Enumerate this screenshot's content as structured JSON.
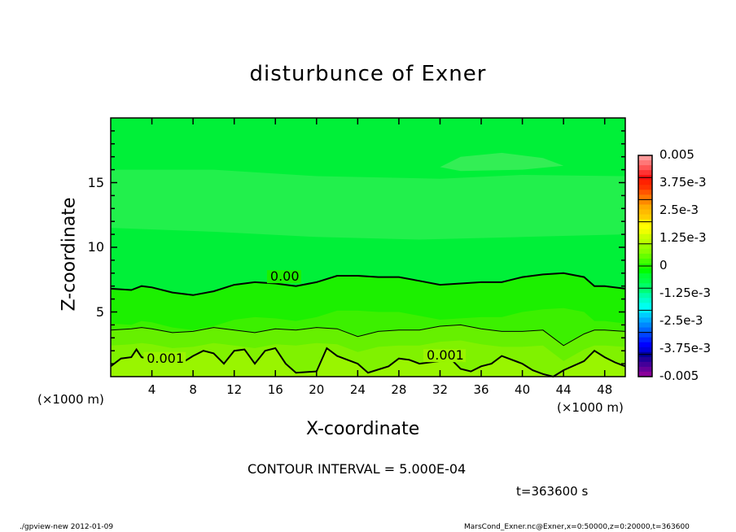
{
  "chart_data": {
    "type": "heatmap",
    "title": "disturbunce of Exner",
    "xlabel": "X-coordinate",
    "ylabel": "Z-coordinate",
    "x_unit": "(×1000 m)",
    "y_unit": "(×1000 m)",
    "xlim": [
      0,
      50
    ],
    "ylim": [
      0,
      20
    ],
    "x_ticks": [
      "4",
      "8",
      "12",
      "16",
      "20",
      "24",
      "28",
      "32",
      "36",
      "40",
      "44",
      "48"
    ],
    "y_ticks": [
      "5",
      "10",
      "15"
    ],
    "contour_labels": [
      "0.00",
      "0.001",
      "0.001"
    ],
    "contour_interval": "CONTOUR INTERVAL = 5.000E-04",
    "colorbar": {
      "range": [
        -0.005,
        0.005
      ],
      "labels": [
        "0.005",
        "3.75e-3",
        "2.5e-3",
        "1.25e-3",
        "0",
        "-1.25e-3",
        "-2.5e-3",
        "-3.75e-3",
        "-0.005"
      ],
      "colors": [
        "#ff9999",
        "#ff7777",
        "#ff5555",
        "#ff3333",
        "#ff1010",
        "#ff2200",
        "#ff3300",
        "#ff5500",
        "#ff7700",
        "#ff8800",
        "#ffaa00",
        "#ffbb00",
        "#ffcc00",
        "#ffee00",
        "#ffff00",
        "#eeff00",
        "#ccff00",
        "#bbff00",
        "#99ff00",
        "#88ff00",
        "#66ff00",
        "#44ff00",
        "#22ff00",
        "#00ff00",
        "#00ff33",
        "#00ff44",
        "#00ff66",
        "#00ff77",
        "#00ffaa",
        "#00ffcc",
        "#00ffee",
        "#00ffff",
        "#00ccff",
        "#00aaff",
        "#0088ff",
        "#0066ff",
        "#0044ff",
        "#0022ff",
        "#0000ff",
        "#0000dd",
        "#000099",
        "#220099",
        "#440099",
        "#660099",
        "#880099"
      ]
    },
    "time_label": "t=363600 s"
  },
  "footer": {
    "left": "./gpview-new   2012-01-09",
    "right": "MarsCond_Exner.nc@Exner,x=0:50000,z=0:20000,t=363600"
  }
}
